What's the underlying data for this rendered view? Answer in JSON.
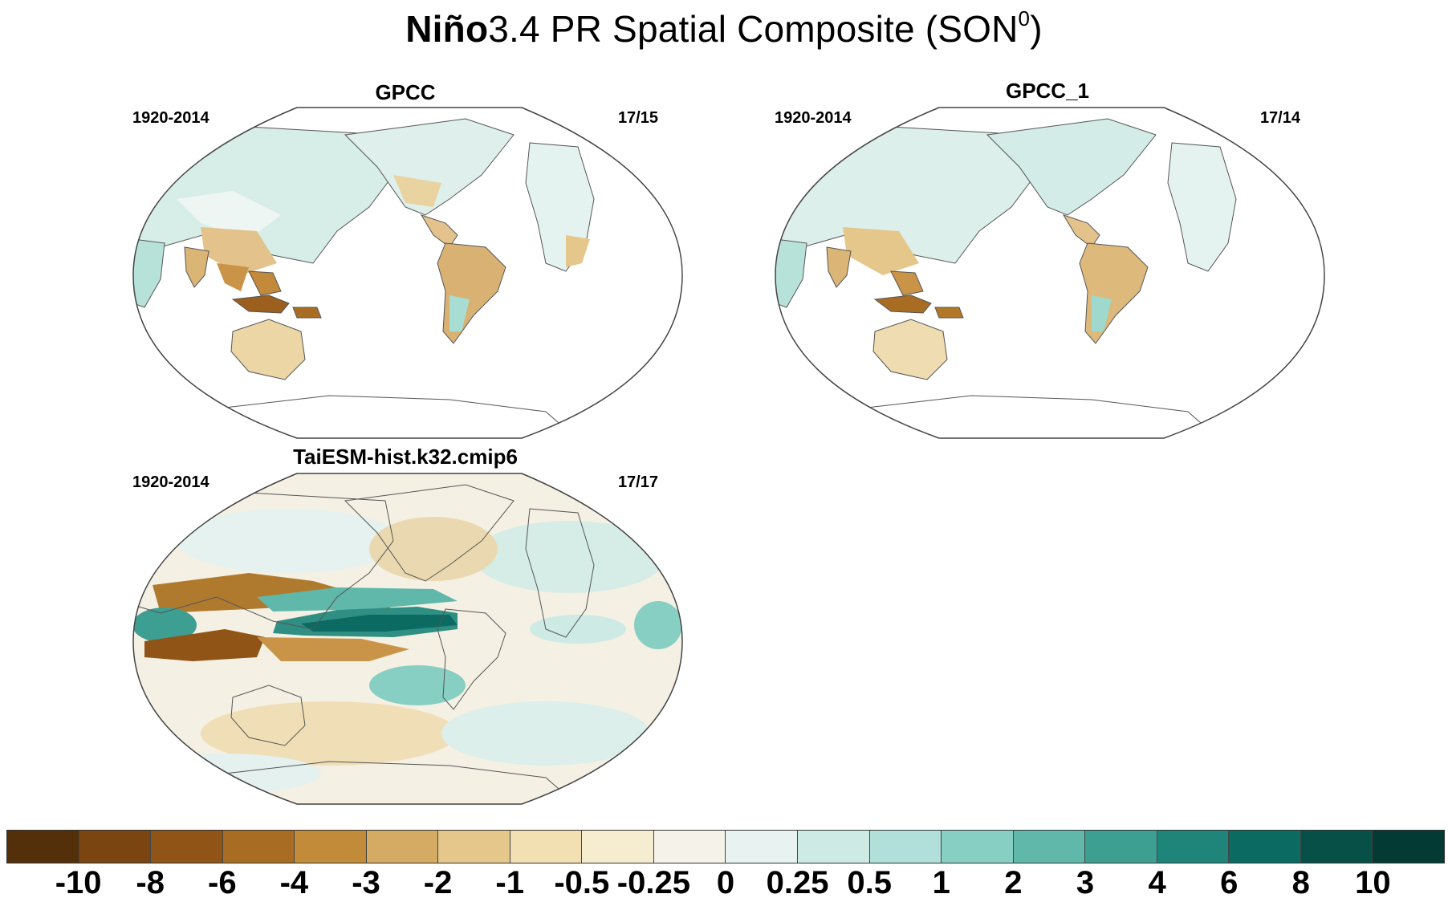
{
  "title": {
    "bold_part": "Niño",
    "rest": "3.4 PR Spatial Composite (SON",
    "superscript": "0",
    "close": ")"
  },
  "panels": [
    {
      "id": "gpcc",
      "title": "GPCC",
      "years": "1920-2014",
      "ratio": "17/15"
    },
    {
      "id": "gpcc1",
      "title": "GPCC_1",
      "years": "1920-2014",
      "ratio": "17/14"
    },
    {
      "id": "taiesm",
      "title": "TaiESM-hist.k32.cmip6",
      "years": "1920-2014",
      "ratio": "17/17"
    }
  ],
  "colorbar": {
    "labels": [
      "-10",
      "-8",
      "-6",
      "-4",
      "-3",
      "-2",
      "-1",
      "-0.5",
      "-0.25",
      "0",
      "0.25",
      "0.5",
      "1",
      "2",
      "3",
      "4",
      "6",
      "8",
      "10"
    ],
    "colors": [
      "#54300a",
      "#7a4510",
      "#8f5416",
      "#a86d22",
      "#c28b3a",
      "#d5aa62",
      "#e6c78b",
      "#f2dfb2",
      "#f6ecd0",
      "#f5f2ea",
      "#e8f3f1",
      "#cdeae5",
      "#b0e0d9",
      "#88cfc3",
      "#5fb8aa",
      "#3d9f92",
      "#1f857a",
      "#0b6b62",
      "#065048",
      "#033a33"
    ]
  }
}
